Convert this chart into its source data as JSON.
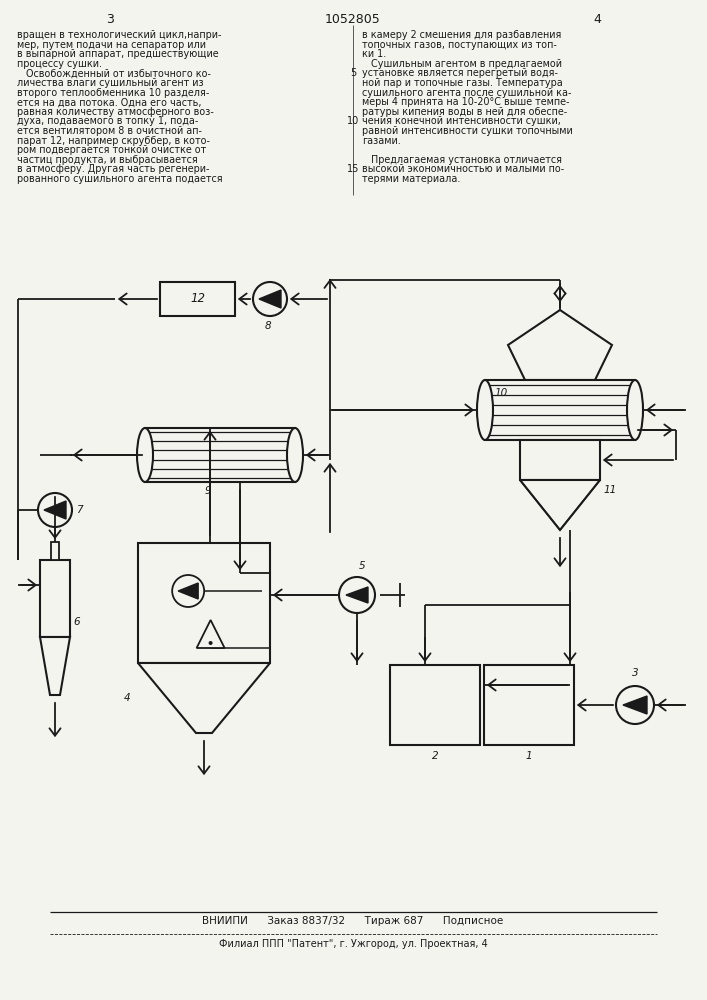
{
  "page_num_left": "3",
  "page_num_center": "1052805",
  "page_num_right": "4",
  "text_left": [
    "вращен в технологический цикл,напри-",
    "мер, путем подачи на сепаратор или",
    "в выпарной аппарат, предшествующие",
    "процессу сушки.",
    "   Освобожденный от избыточного ко-",
    "личества влаги сушильный агент из",
    "второго теплообменника 10 разделя-",
    "ется на два потока. Одна его часть,",
    "равная количеству атмосферного воз-",
    "духа, подаваемого в топку 1, пода-",
    "ется вентилятором 8 в очистной ап-",
    "парат 12, например скруббер, в кото-",
    "ром подвергается тонкой очистке от",
    "частиц продукта, и выбрасывается",
    "в атмосферу. Другая часть регенери-",
    "рованного сушильного агента подается"
  ],
  "line_nums": [
    null,
    null,
    null,
    null,
    "5",
    null,
    null,
    null,
    null,
    "10",
    null,
    null,
    null,
    null,
    "15",
    null
  ],
  "text_right": [
    "в камеру 2 смешения для разбавления",
    "топочных газов, поступающих из топ-",
    "ки 1.",
    "   Сушильным агентом в предлагаемой",
    "установке является перегретый водя-",
    "ной пар и топочные газы. Температура",
    "сушильного агента после сушильной ка-",
    "меры 4 принята на 10-20°С выше темпе-",
    "ратуры кипения воды в ней для обеспе-",
    "чения конечной интенсивности сушки,",
    "равной интенсивности сушки топочными",
    "газами.",
    "",
    "   Предлагаемая установка отличается",
    "высокой экономичностью и малыми по-",
    "терями материала."
  ],
  "footer1": "ВНИИПИ      Заказ 8837/32      Тираж 687      Подписное",
  "footer2": "Филиал ППП \"Патент\", г. Ужгород, ул. Проектная, 4",
  "bg": "#f4f4ef",
  "lc": "#1a1a1a",
  "tc": "#1a1a1a"
}
